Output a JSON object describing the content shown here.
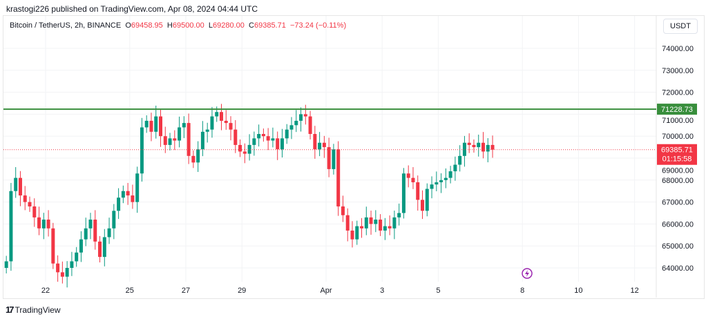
{
  "header": {
    "published": "krastogi226 published on TradingView.com, Apr 08, 2024 04:44 UTC"
  },
  "legend": {
    "symbol": "Bitcoin / TetherUS, 2h, BINANCE",
    "o_label": "O",
    "o": "69458.95",
    "h_label": "H",
    "h": "69500.00",
    "l_label": "L",
    "l": "69280.00",
    "c_label": "C",
    "c": "69385.71",
    "change": "−73.24 (−0.11%)"
  },
  "currency": "USDT",
  "price_label": {
    "price": "69385.71",
    "countdown": "01:15:58"
  },
  "hline_label": "71228.73",
  "brand": "TradingView",
  "colors": {
    "up": "#089981",
    "down": "#f23645",
    "hline": "#388e3c"
  },
  "chart_data": {
    "type": "candlestick",
    "title": "Bitcoin / TetherUS, 2h, BINANCE",
    "ylim": [
      63400,
      75000
    ],
    "y_ticks": [
      "64000.00",
      "65000.00",
      "66000.00",
      "67000.00",
      "68000.00",
      "69000.00",
      "70000.00",
      "71000.00",
      "72000.00",
      "73000.00",
      "74000.00"
    ],
    "y_tick_values": [
      64000,
      65000,
      66000,
      67000,
      68000,
      69000,
      70000,
      71000,
      72000,
      73000,
      74000
    ],
    "x_ticks": [
      {
        "label": "22",
        "day": 22
      },
      {
        "label": "25",
        "day": 25
      },
      {
        "label": "27",
        "day": 27
      },
      {
        "label": "29",
        "day": 29
      },
      {
        "label": "Apr",
        "day": 32
      },
      {
        "label": "3",
        "day": 34
      },
      {
        "label": "5",
        "day": 36
      },
      {
        "label": "8",
        "day": 39
      },
      {
        "label": "10",
        "day": 41
      },
      {
        "label": "12",
        "day": 43
      }
    ],
    "x_unit": "days since Mar 1 (Apr 1 = 32)",
    "start_day": 20.6,
    "step_days": 0.1667,
    "first_open": 64000,
    "closes": [
      64300,
      67500,
      68100,
      67300,
      67000,
      66800,
      66300,
      65800,
      66200,
      65800,
      64200,
      63800,
      63600,
      64000,
      64300,
      64700,
      65300,
      65800,
      66200,
      65200,
      64500,
      65400,
      65800,
      66600,
      67200,
      67500,
      67300,
      67000,
      68300,
      70400,
      70700,
      70200,
      70900,
      70000,
      69600,
      69900,
      69800,
      70400,
      70600,
      69100,
      68800,
      69400,
      70200,
      70300,
      70900,
      71100,
      70700,
      70600,
      70300,
      69600,
      69300,
      69200,
      69600,
      69900,
      70100,
      70000,
      69800,
      69900,
      69400,
      69900,
      70300,
      70500,
      70700,
      71000,
      70900,
      70100,
      69400,
      69700,
      69500,
      68500,
      69400,
      66800,
      66400,
      65700,
      65300,
      65900,
      65800,
      66300,
      66000,
      66200,
      65700,
      65900,
      65800,
      66300,
      66500,
      68300,
      68100,
      67900,
      67100,
      66600,
      67600,
      67800,
      67900,
      68000,
      68100,
      68400,
      68700,
      69100,
      69700,
      69600,
      69500,
      69700,
      69300,
      69600,
      69385.71
    ],
    "horizontal_line": 71228.73,
    "last_price": 69385.71
  }
}
